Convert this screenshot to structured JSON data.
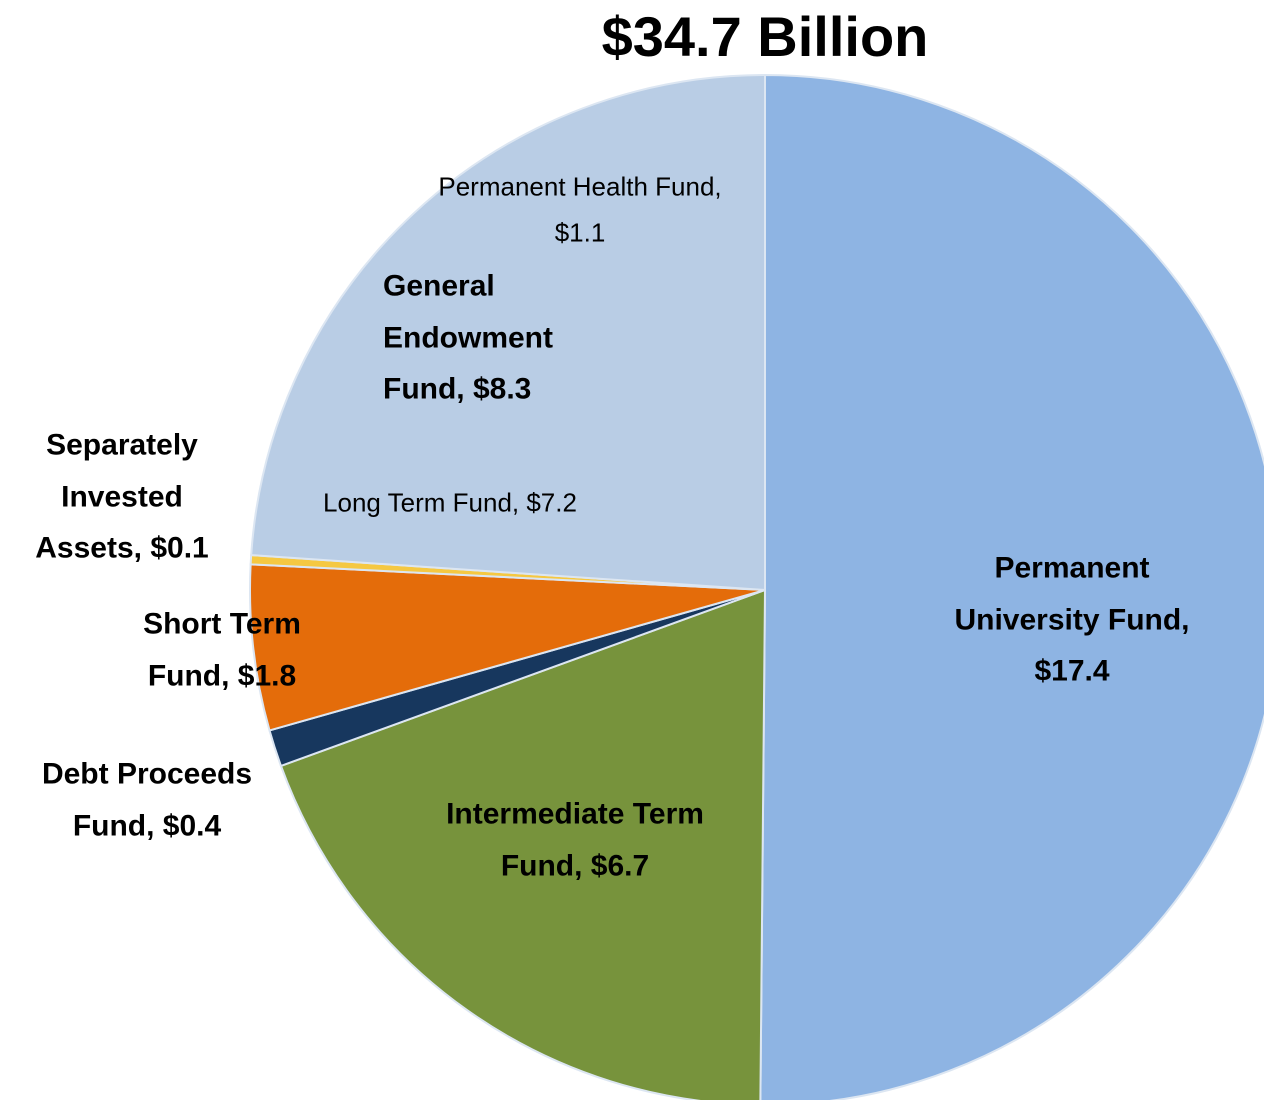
{
  "chart_data": {
    "type": "pie",
    "title": "$34.7 Billion",
    "labels": [
      "Permanent University Fund, $17.4",
      "Intermediate Term Fund, $6.7",
      "Debt Proceeds Fund, $0.4",
      "Short Term Fund, $1.8",
      "Separately Invested Assets, $0.1",
      "General Endowment Fund, $8.3"
    ],
    "values": [
      17.4,
      6.7,
      0.4,
      1.8,
      0.1,
      8.3
    ],
    "colors": [
      "#8eb4e3",
      "#77933c",
      "#17375e",
      "#e46c0a",
      "#f5c842",
      "#b9cde5"
    ],
    "annotations": [
      "Permanent Health Fund,  $1.1",
      "Long Term Fund, $7.2"
    ]
  }
}
